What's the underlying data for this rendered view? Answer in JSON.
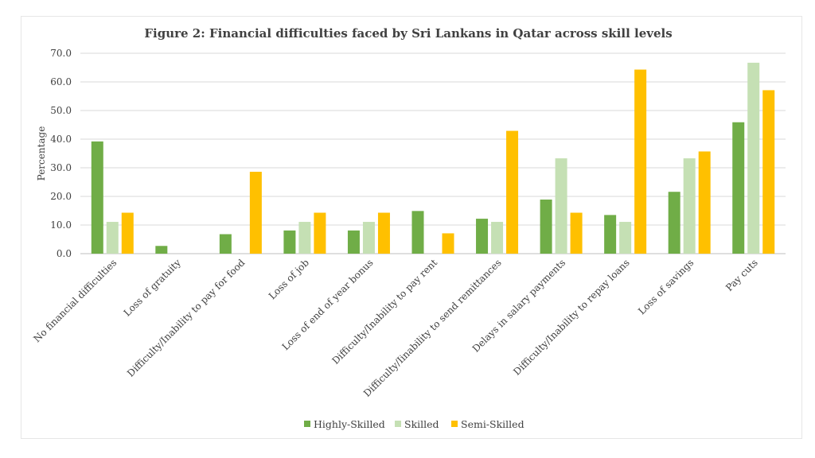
{
  "chart_data": {
    "type": "bar",
    "title": "Figure 2: Financial difficulties faced by Sri Lankans in Qatar across skill levels",
    "xlabel": "",
    "ylabel": "Percentage",
    "ylim": [
      0,
      70
    ],
    "yticks": [
      "0.0",
      "10.0",
      "20.0",
      "30.0",
      "40.0",
      "50.0",
      "60.0",
      "70.0"
    ],
    "grid": true,
    "legend_position": "bottom",
    "categories": [
      "No financial difficulties",
      "Loss of gratuity",
      "Difficulty/Inability to pay for food",
      "Loss of job",
      "Loss of end of year bonus",
      "Difficulty/Inability to pay rent",
      "Difficulty/Iinability to send remittances",
      "Delays in salary payments",
      "Difficulty/Inability to repay loans",
      "Loss of savings",
      "Pay cuts"
    ],
    "series": [
      {
        "name": "Highly-Skilled",
        "color": "#70ad47",
        "values": [
          39.2,
          2.7,
          6.8,
          8.1,
          8.1,
          14.9,
          12.2,
          18.9,
          13.5,
          21.6,
          45.9
        ]
      },
      {
        "name": "Skilled",
        "color": "#c5e0b4",
        "values": [
          11.1,
          0,
          0,
          11.1,
          11.1,
          0,
          11.1,
          33.3,
          11.1,
          33.3,
          66.7
        ]
      },
      {
        "name": "Semi-Skilled",
        "color": "#ffc000",
        "values": [
          14.3,
          0,
          28.6,
          14.3,
          14.3,
          7.1,
          42.9,
          14.3,
          64.3,
          35.7,
          57.1
        ]
      }
    ]
  }
}
